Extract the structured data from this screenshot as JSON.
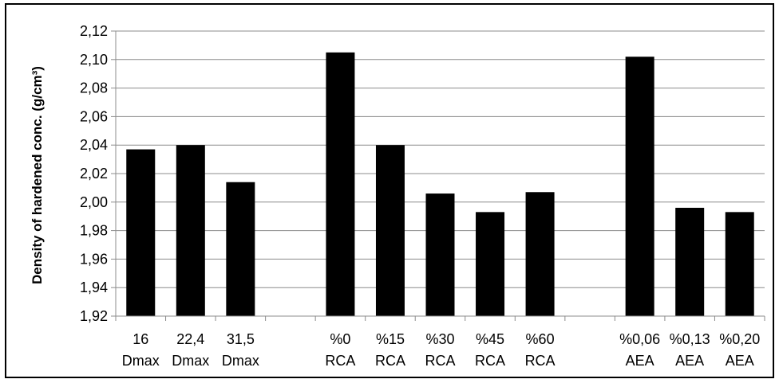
{
  "chart_data": {
    "type": "bar",
    "title": "",
    "xlabel": "",
    "ylabel": "Density of hardened conc. (g/cm³)",
    "ylim": [
      1.92,
      2.12
    ],
    "yticks": [
      "1,92",
      "1,94",
      "1,96",
      "1,98",
      "2,00",
      "2,02",
      "2,04",
      "2,06",
      "2,08",
      "2,10",
      "2,12"
    ],
    "grid": true,
    "legend": "none",
    "bar_color": "#000000",
    "categories": [
      {
        "line1": "16",
        "line2": "Dmax"
      },
      {
        "line1": "22,4",
        "line2": "Dmax"
      },
      {
        "line1": "31,5",
        "line2": "Dmax"
      },
      {
        "line1": "",
        "line2": ""
      },
      {
        "line1": "%0",
        "line2": "RCA"
      },
      {
        "line1": "%15",
        "line2": "RCA"
      },
      {
        "line1": "%30",
        "line2": "RCA"
      },
      {
        "line1": "%45",
        "line2": "RCA"
      },
      {
        "line1": "%60",
        "line2": "RCA"
      },
      {
        "line1": "",
        "line2": ""
      },
      {
        "line1": "%0,06",
        "line2": "AEA"
      },
      {
        "line1": "%0,13",
        "line2": "AEA"
      },
      {
        "line1": "%0,20",
        "line2": "AEA"
      }
    ],
    "values": [
      2.037,
      2.04,
      2.014,
      null,
      2.105,
      2.04,
      2.006,
      1.993,
      2.007,
      null,
      2.102,
      1.996,
      1.993
    ]
  }
}
